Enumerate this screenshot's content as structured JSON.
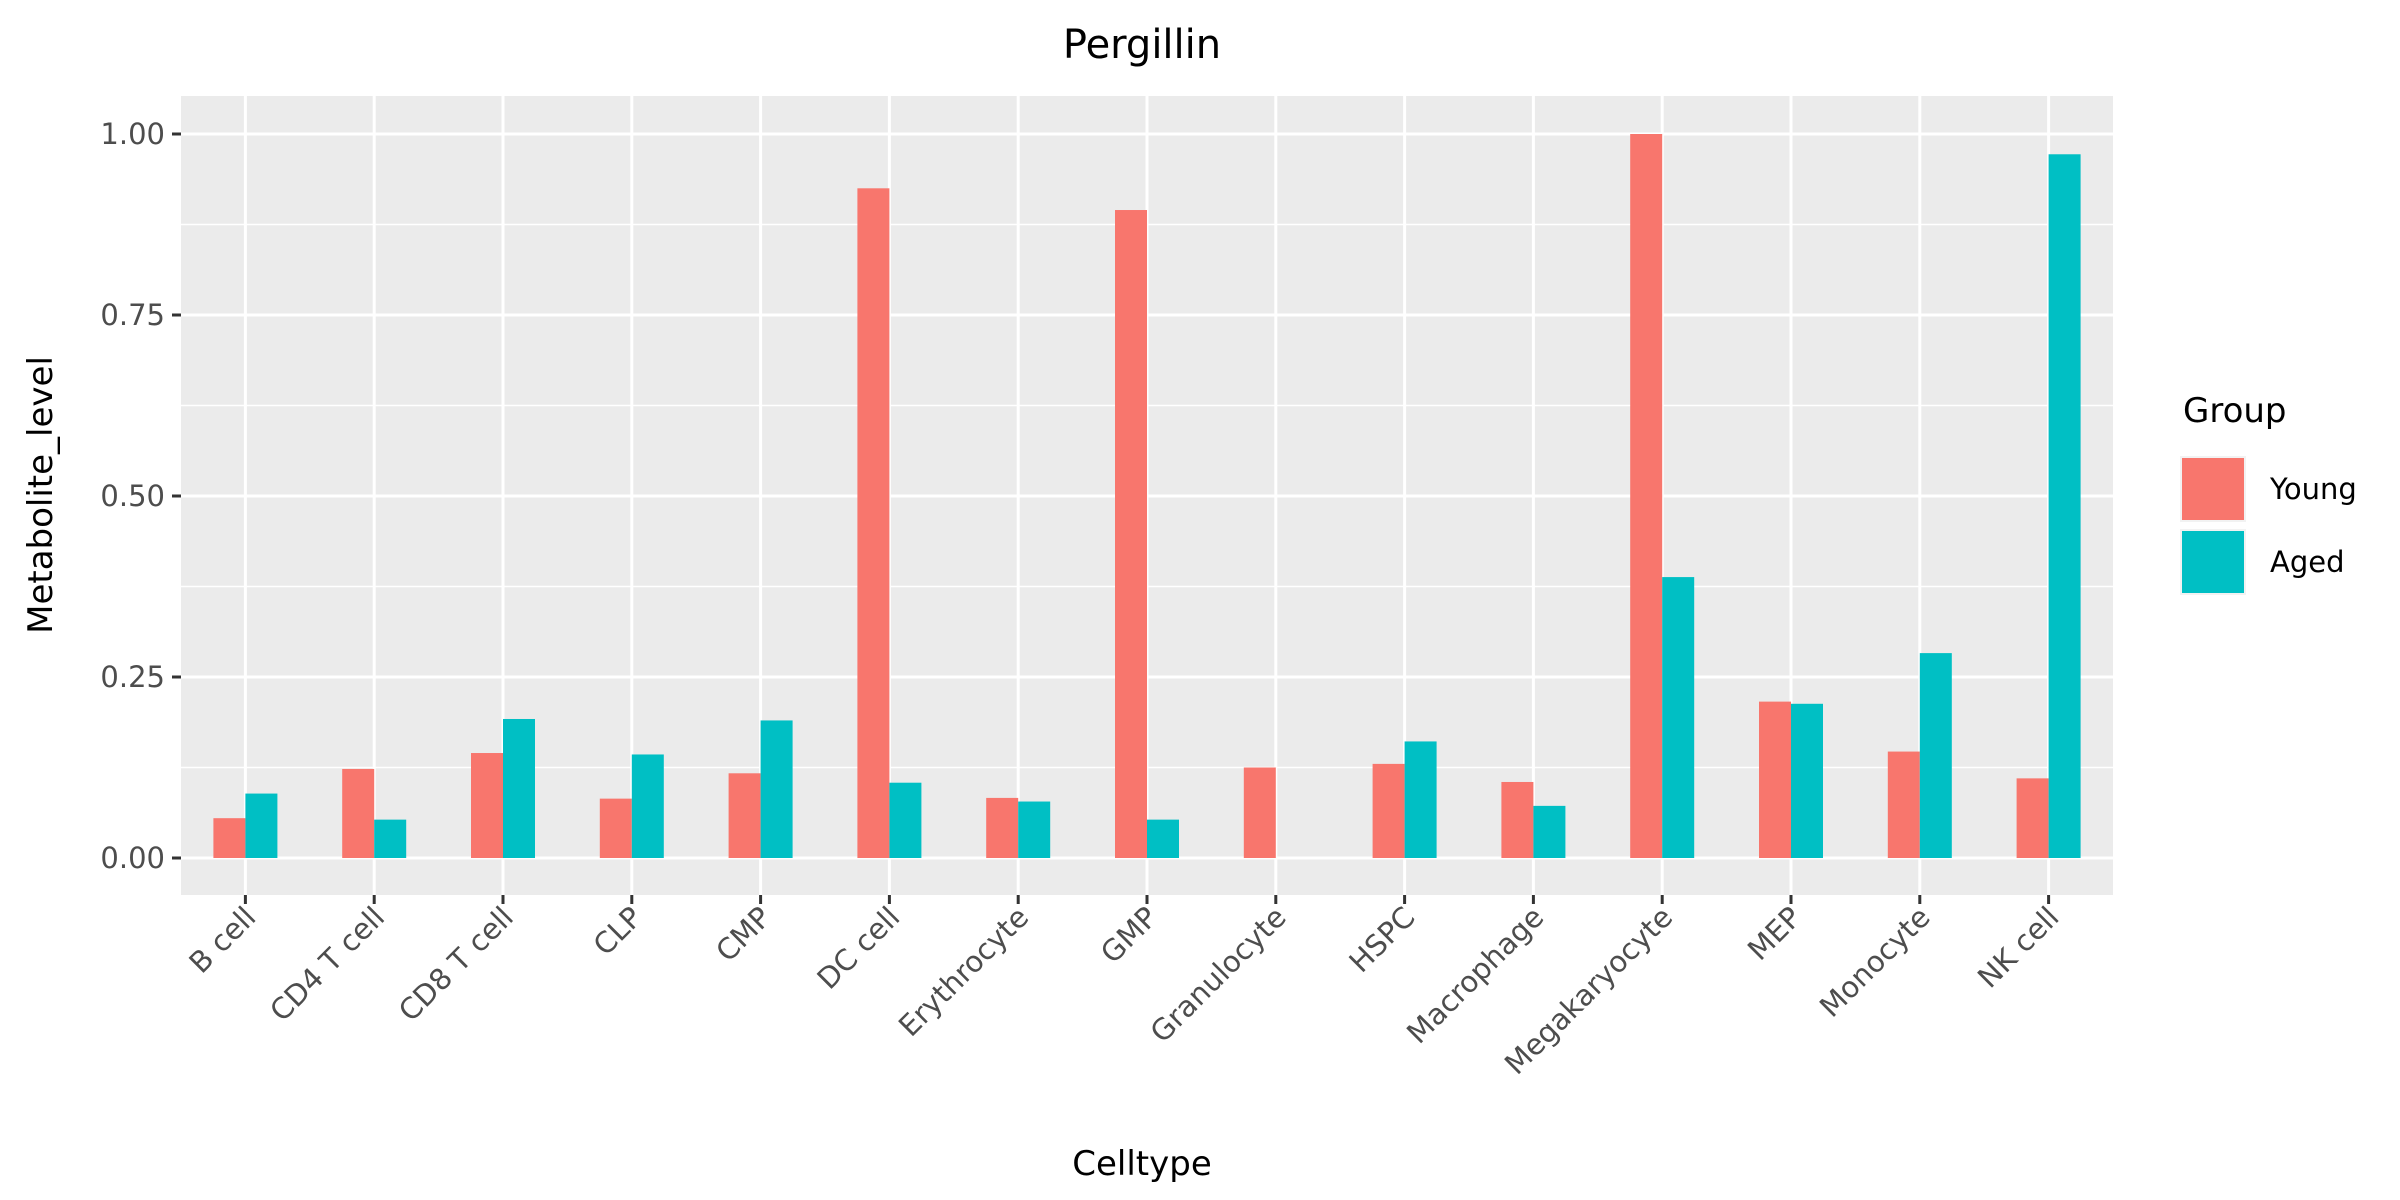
{
  "chart_data": {
    "type": "bar",
    "title": "Pergillin",
    "xlabel": "Celltype",
    "ylabel": "Metabolite_level",
    "ylim": [
      0,
      1.05
    ],
    "yticks": [
      0.0,
      0.25,
      0.5,
      0.75,
      1.0
    ],
    "ytick_labels": [
      "0.00",
      "0.25",
      "0.50",
      "0.75",
      "1.00"
    ],
    "grid": true,
    "legend_position": "right",
    "legend_title": "Group",
    "categories": [
      "B cell",
      "CD4 T cell",
      "CD8 T cell",
      "CLP",
      "CMP",
      "DC cell",
      "Erythrocyte",
      "GMP",
      "Granulocyte",
      "HSPC",
      "Macrophage",
      "Megakaryocyte",
      "MEP",
      "Monocyte",
      "NK cell"
    ],
    "series": [
      {
        "name": "Young",
        "color": "#F8766D",
        "values": [
          0.055,
          0.123,
          0.145,
          0.082,
          0.117,
          0.925,
          0.083,
          0.895,
          0.125,
          0.13,
          0.105,
          1.0,
          0.216,
          0.147,
          0.11
        ]
      },
      {
        "name": "Aged",
        "color": "#00BFC4",
        "values": [
          0.089,
          0.053,
          0.192,
          0.143,
          0.19,
          0.104,
          0.078,
          0.053,
          null,
          0.161,
          0.072,
          0.388,
          0.213,
          0.283,
          0.972
        ]
      }
    ]
  }
}
